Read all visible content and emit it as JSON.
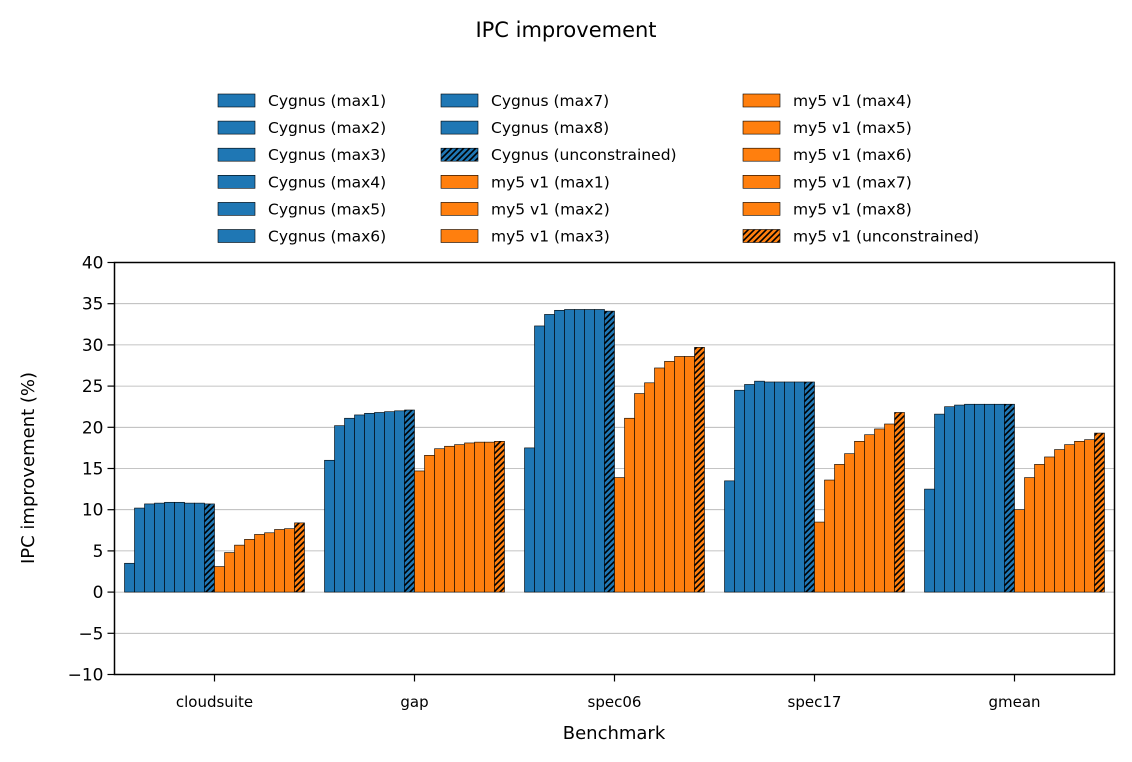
{
  "chart_data": {
    "type": "bar",
    "title": "IPC improvement",
    "xlabel": "Benchmark",
    "ylabel": "IPC improvement (%)",
    "ylim": [
      -10,
      40
    ],
    "yticks": [
      -10,
      -5,
      0,
      5,
      10,
      15,
      20,
      25,
      30,
      35,
      40
    ],
    "ytick_labels": [
      "−10",
      "−5",
      "0",
      "5",
      "10",
      "15",
      "20",
      "25",
      "30",
      "35",
      "40"
    ],
    "grid": "horizontal",
    "legend_position": "top-center",
    "categories": [
      "cloudsuite",
      "gap",
      "spec06",
      "spec17",
      "gmean"
    ],
    "colors": {
      "Cygnus": "#1f77b4",
      "my5 v1": "#ff7f0e"
    },
    "series": [
      {
        "name": "Cygnus (max1)",
        "group": "Cygnus",
        "hatch": false,
        "values": [
          3.5,
          16.0,
          17.5,
          13.5,
          12.5
        ]
      },
      {
        "name": "Cygnus (max2)",
        "group": "Cygnus",
        "hatch": false,
        "values": [
          10.2,
          20.2,
          32.3,
          24.5,
          21.6
        ]
      },
      {
        "name": "Cygnus (max3)",
        "group": "Cygnus",
        "hatch": false,
        "values": [
          10.7,
          21.1,
          33.7,
          25.2,
          22.5
        ]
      },
      {
        "name": "Cygnus (max4)",
        "group": "Cygnus",
        "hatch": false,
        "values": [
          10.8,
          21.5,
          34.2,
          25.6,
          22.7
        ]
      },
      {
        "name": "Cygnus (max5)",
        "group": "Cygnus",
        "hatch": false,
        "values": [
          10.9,
          21.7,
          34.3,
          25.5,
          22.8
        ]
      },
      {
        "name": "Cygnus (max6)",
        "group": "Cygnus",
        "hatch": false,
        "values": [
          10.9,
          21.8,
          34.3,
          25.5,
          22.8
        ]
      },
      {
        "name": "Cygnus (max7)",
        "group": "Cygnus",
        "hatch": false,
        "values": [
          10.8,
          21.9,
          34.3,
          25.5,
          22.8
        ]
      },
      {
        "name": "Cygnus (max8)",
        "group": "Cygnus",
        "hatch": false,
        "values": [
          10.8,
          22.0,
          34.3,
          25.5,
          22.8
        ]
      },
      {
        "name": "Cygnus (unconstrained)",
        "group": "Cygnus",
        "hatch": true,
        "values": [
          10.7,
          22.1,
          34.1,
          25.5,
          22.8
        ]
      },
      {
        "name": "my5 v1 (max1)",
        "group": "my5 v1",
        "hatch": false,
        "values": [
          3.1,
          14.7,
          13.9,
          8.5,
          10.0
        ]
      },
      {
        "name": "my5 v1 (max2)",
        "group": "my5 v1",
        "hatch": false,
        "values": [
          4.8,
          16.6,
          21.1,
          13.6,
          13.9
        ]
      },
      {
        "name": "my5 v1 (max3)",
        "group": "my5 v1",
        "hatch": false,
        "values": [
          5.7,
          17.4,
          24.1,
          15.5,
          15.5
        ]
      },
      {
        "name": "my5 v1 (max4)",
        "group": "my5 v1",
        "hatch": false,
        "values": [
          6.4,
          17.7,
          25.4,
          16.8,
          16.4
        ]
      },
      {
        "name": "my5 v1 (max5)",
        "group": "my5 v1",
        "hatch": false,
        "values": [
          7.0,
          17.9,
          27.2,
          18.3,
          17.3
        ]
      },
      {
        "name": "my5 v1 (max6)",
        "group": "my5 v1",
        "hatch": false,
        "values": [
          7.2,
          18.1,
          28.0,
          19.1,
          17.9
        ]
      },
      {
        "name": "my5 v1 (max7)",
        "group": "my5 v1",
        "hatch": false,
        "values": [
          7.6,
          18.2,
          28.6,
          19.8,
          18.3
        ]
      },
      {
        "name": "my5 v1 (max8)",
        "group": "my5 v1",
        "hatch": false,
        "values": [
          7.7,
          18.2,
          28.6,
          20.4,
          18.5
        ]
      },
      {
        "name": "my5 v1 (unconstrained)",
        "group": "my5 v1",
        "hatch": true,
        "values": [
          8.4,
          18.3,
          29.7,
          21.8,
          19.3
        ]
      }
    ]
  }
}
